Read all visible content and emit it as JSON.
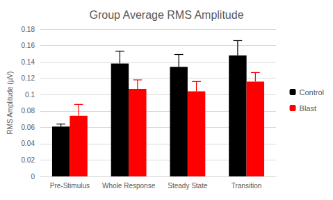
{
  "chart_data": {
    "type": "bar",
    "title": "Group Average RMS Amplitude",
    "y_label": "RMS Amplitude (µV)",
    "categories": [
      "Pre-Stimulus",
      "Whole Response",
      "Steady State",
      "Transition"
    ],
    "series": [
      {
        "name": "Control",
        "color": "#000000",
        "values": [
          0.061,
          0.138,
          0.134,
          0.148
        ],
        "errors": [
          0.003,
          0.015,
          0.015,
          0.018
        ]
      },
      {
        "name": "Blast",
        "color": "#ff0000",
        "values": [
          0.074,
          0.107,
          0.104,
          0.116
        ],
        "errors": [
          0.014,
          0.011,
          0.012,
          0.011
        ]
      }
    ],
    "ylim": [
      0,
      0.18
    ],
    "yticks": [
      0,
      0.02,
      0.04,
      0.06,
      0.08,
      0.1,
      0.12,
      0.14,
      0.16,
      0.18
    ],
    "grid": true,
    "legend": "right"
  }
}
